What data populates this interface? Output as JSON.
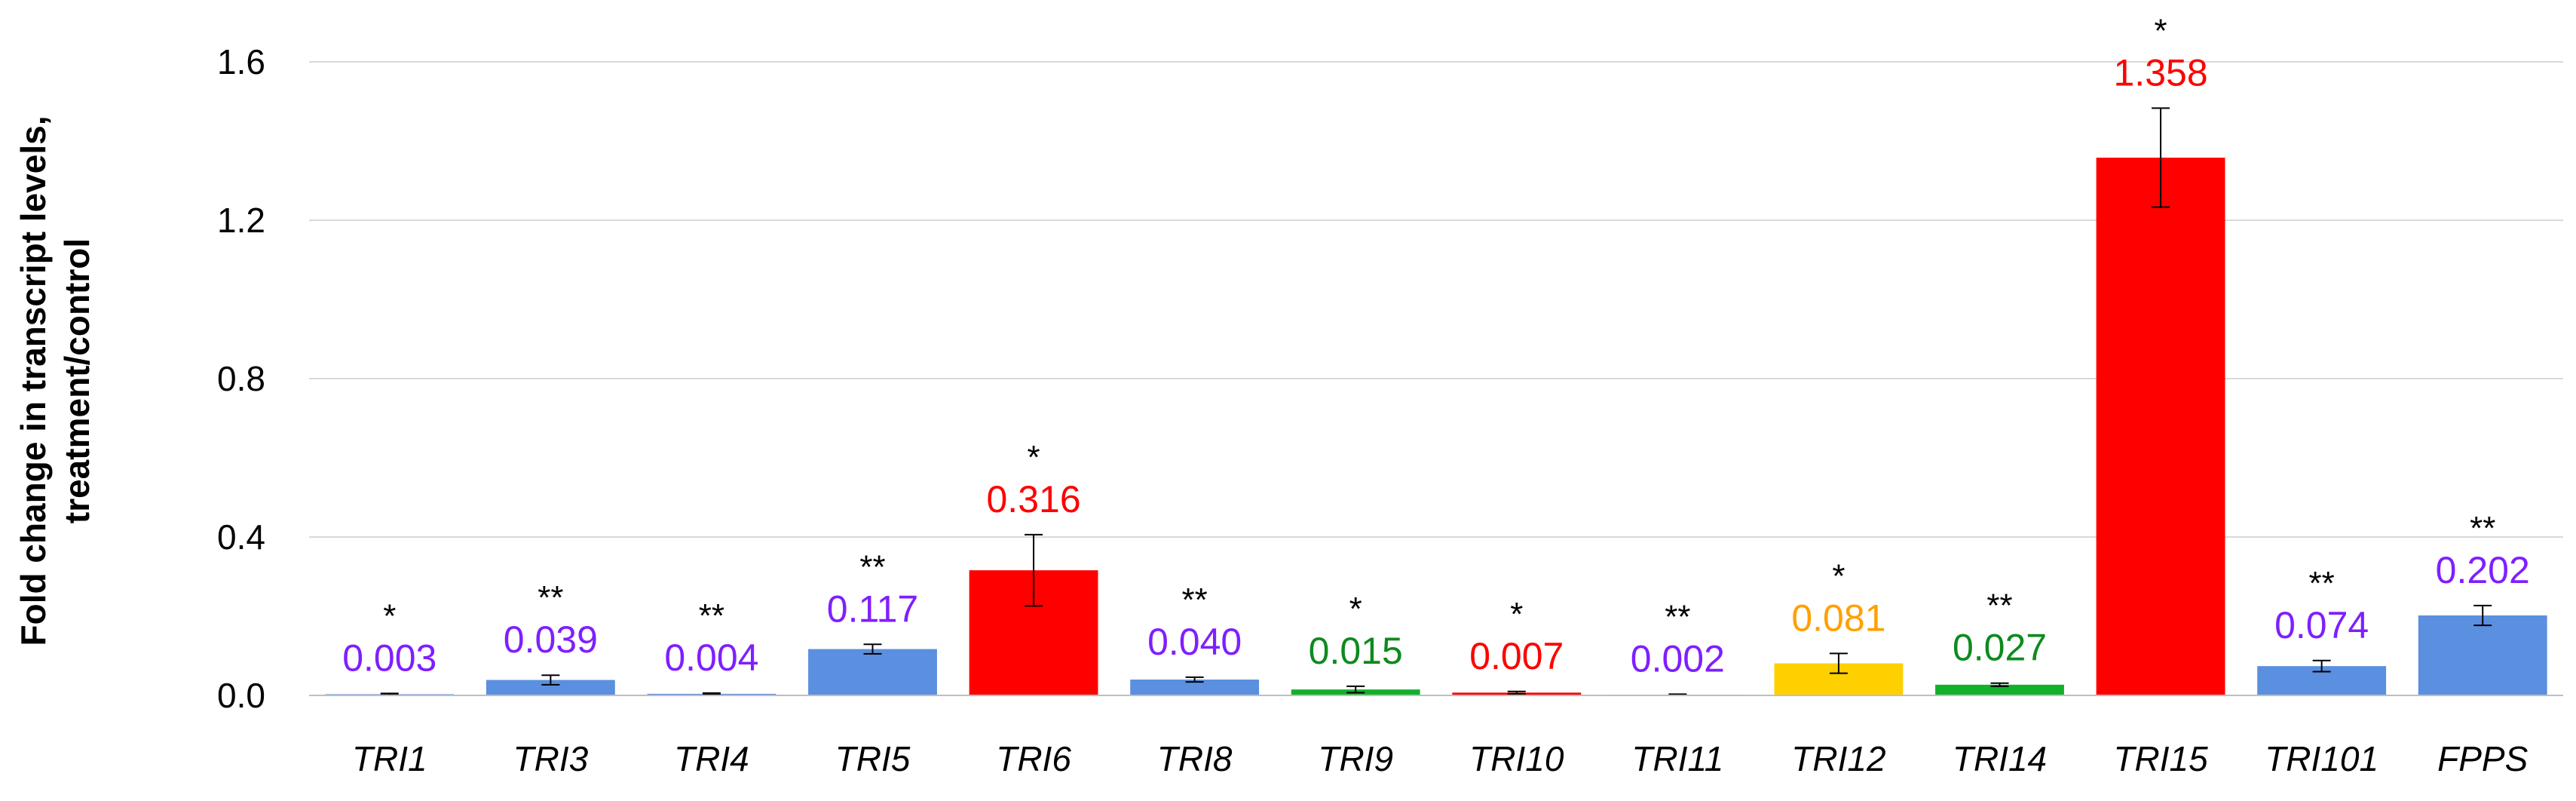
{
  "chart_data": {
    "type": "bar",
    "ylabel_lines": [
      "Fold change in transcript levels,",
      "treatment/control"
    ],
    "xlabel": "",
    "ylim": [
      0,
      1.6
    ],
    "yticks": [
      "0.0",
      "0.4",
      "0.8",
      "1.2",
      "1.6"
    ],
    "grid": true,
    "categories": [
      "TRI1",
      "TRI3",
      "TRI4",
      "TRI5",
      "TRI6",
      "TRI8",
      "TRI9",
      "TRI10",
      "TRI11",
      "TRI12",
      "TRI14",
      "TRI15",
      "TRI101",
      "FPPS"
    ],
    "values": [
      0.003,
      0.039,
      0.004,
      0.117,
      0.316,
      0.04,
      0.015,
      0.007,
      0.002,
      0.081,
      0.027,
      1.358,
      0.074,
      0.202
    ],
    "value_labels": [
      "0.003",
      "0.039",
      "0.004",
      "0.117",
      "0.316",
      "0.040",
      "0.015",
      "0.007",
      "0.002",
      "0.081",
      "0.027",
      "1.358",
      "0.074",
      "0.202"
    ],
    "errors": [
      0.002,
      0.012,
      0.002,
      0.012,
      0.09,
      0.006,
      0.008,
      0.003,
      0.001,
      0.025,
      0.004,
      0.125,
      0.014,
      0.025
    ],
    "significance": [
      "*",
      "**",
      "**",
      "**",
      "*",
      "**",
      "*",
      "*",
      "**",
      "*",
      "**",
      "*",
      "**",
      "**"
    ],
    "bar_colors": [
      "#5b8fdf",
      "#5b8fdf",
      "#5b8fdf",
      "#5b8fdf",
      "#ff0000",
      "#5b8fdf",
      "#13b02b",
      "#ff0000",
      "#5b8fdf",
      "#ffd000",
      "#13b02b",
      "#ff0000",
      "#5b8fdf",
      "#5b8fdf"
    ],
    "label_colors": [
      "#7f1fff",
      "#7f1fff",
      "#7f1fff",
      "#7f1fff",
      "#ff0000",
      "#7f1fff",
      "#0e8a1e",
      "#ff0000",
      "#7f1fff",
      "#ffa000",
      "#0e8a1e",
      "#ff0000",
      "#7f1fff",
      "#7f1fff"
    ]
  }
}
